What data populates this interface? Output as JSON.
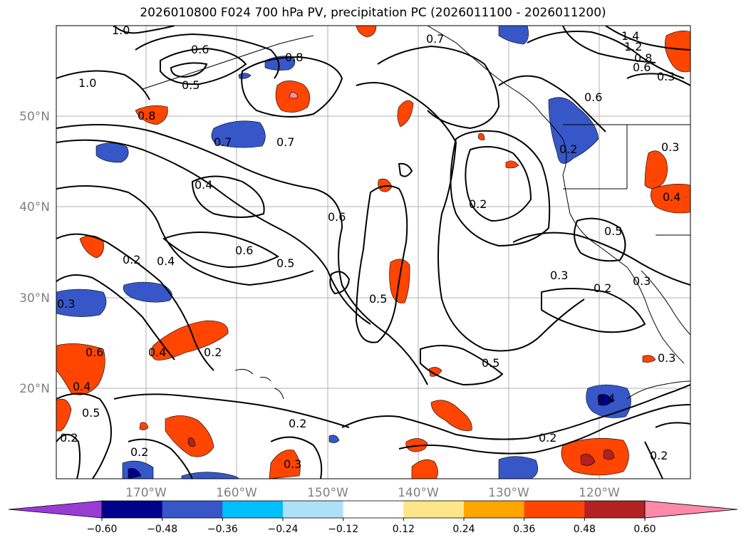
{
  "title": "2026010800 F024 700 hPa PV, precipitation PC (2026011100 - 2026011200)",
  "latitude_labels": [
    "50°N",
    "40°N",
    "30°N",
    "20°N"
  ],
  "longitude_labels": [
    "170°W",
    "160°W",
    "150°W",
    "140°W",
    "130°W",
    "120°W"
  ],
  "colorbar": {
    "tick_labels": [
      "−0.60",
      "−0.48",
      "−0.36",
      "−0.24",
      "−0.12",
      "0.12",
      "0.24",
      "0.36",
      "0.48",
      "0.60"
    ],
    "colors": [
      "#9a3bd6",
      "#00008b",
      "#3757c9",
      "#00bfff",
      "#aee0fa",
      "#ffffff",
      "#fde68a",
      "#ffa500",
      "#ff4500",
      "#b22222",
      "#ff89a9"
    ]
  },
  "contour_labels": [
    "1.0",
    "0.6",
    "0.5",
    "0.8",
    "0.7",
    "1.4",
    "1.2",
    "0.8",
    "0.6",
    "0.3",
    "1.0",
    "0.8",
    "0.7",
    "0.7",
    "0.6",
    "0.4",
    "0.6",
    "0.6",
    "0.2",
    "0.5",
    "0.2",
    "0.4",
    "0.5",
    "0.5",
    "0.3",
    "0.3",
    "0.2",
    "0.3",
    "0.2",
    "0.4",
    "0.5",
    "0.6",
    "0.5",
    "0.2",
    "0.2",
    "0.3",
    "0.2",
    "0.4",
    "0.2",
    "0.3",
    "0.2",
    "0.4",
    "0.2",
    "0.4",
    "0.3"
  ]
}
